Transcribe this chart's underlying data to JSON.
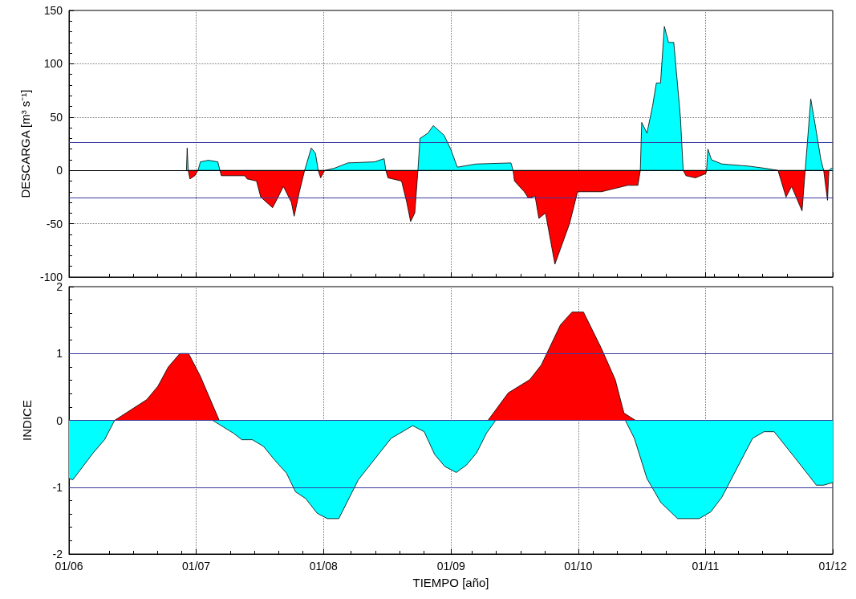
{
  "chart_data": [
    {
      "type": "area",
      "ylabel": "DESCARGA [m³ s⁻¹]",
      "xlim": [
        "2006-01-01",
        "2012-01-01"
      ],
      "ylim": [
        -100,
        150
      ],
      "xticks": [
        {
          "value": "2006-01-01",
          "label": null
        },
        {
          "value": "2007-01-01",
          "label": null
        },
        {
          "value": "2008-01-01",
          "label": null
        },
        {
          "value": "2009-01-01",
          "label": null
        },
        {
          "value": "2010-01-01",
          "label": null
        },
        {
          "value": "2011-01-01",
          "label": null
        },
        {
          "value": "2012-01-01",
          "label": null
        }
      ],
      "yticks": [
        -100,
        -50,
        0,
        50,
        100,
        150
      ],
      "grid": true,
      "tick_labels": "y",
      "ref_lines": [
        {
          "axis": "y",
          "value": 0,
          "color": "#000000"
        },
        {
          "axis": "y",
          "value": 26,
          "color": "#3a3aa0"
        },
        {
          "axis": "y",
          "value": -26,
          "color": "#3a3aa0"
        }
      ],
      "series": [
        {
          "color": "#00ffff",
          "x": [
            "2006-12-04",
            "2006-12-06",
            "2006-12-09",
            "2007-01-06",
            "2007-01-13",
            "2007-02-05",
            "2007-03-04",
            "2007-03-10",
            "2007-11-08",
            "2007-11-27",
            "2007-12-09",
            "2007-12-17",
            "2008-01-05",
            "2008-02-01",
            "2008-03-11",
            "2008-05-27",
            "2008-06-23",
            "2008-06-28",
            "2008-09-28",
            "2008-10-04",
            "2008-10-27",
            "2008-11-11",
            "2008-12-12",
            "2008-12-31",
            "2009-01-19",
            "2009-03-14",
            "2009-06-22",
            "2009-06-28",
            "2010-06-28",
            "2010-07-02",
            "2010-07-17",
            "2010-08-02",
            "2010-08-13",
            "2010-08-25",
            "2010-09-05",
            "2010-09-17",
            "2010-10-02",
            "2010-10-21",
            "2010-10-29",
            "2011-01-04",
            "2011-01-08",
            "2011-01-18",
            "2011-02-17",
            "2011-05-05",
            "2011-06-20",
            "2011-07-28",
            "2011-10-14",
            "2011-10-30",
            "2011-11-13",
            "2011-11-28",
            "2011-12-06",
            "2011-12-21",
            "2011-12-28",
            "2012-01-01"
          ],
          "values": [
            0,
            21,
            0,
            0,
            8,
            9.5,
            8,
            0,
            0,
            21,
            16,
            0,
            0,
            2,
            7,
            8,
            11,
            0,
            0,
            30,
            35,
            42,
            33,
            20,
            3,
            6,
            7,
            0,
            0,
            45,
            35,
            60,
            82,
            82,
            135,
            120,
            120,
            50,
            0,
            0,
            20,
            10,
            6,
            4,
            2,
            0,
            0,
            67,
            40,
            10,
            0,
            0,
            2,
            1
          ]
        },
        {
          "color": "#ff0000",
          "x": [
            "2006-12-09",
            "2006-12-14",
            "2006-12-28",
            "2007-01-06",
            "2007-03-10",
            "2007-03-14",
            "2007-05-20",
            "2007-05-27",
            "2007-06-23",
            "2007-07-05",
            "2007-08-08",
            "2007-08-24",
            "2007-09-08",
            "2007-10-01",
            "2007-10-09",
            "2007-10-24",
            "2007-11-08",
            "2007-12-17",
            "2007-12-24",
            "2008-01-01",
            "2008-01-05",
            "2008-06-28",
            "2008-07-04",
            "2008-08-12",
            "2008-08-27",
            "2008-09-07",
            "2008-09-19",
            "2008-09-28",
            "2009-06-28",
            "2009-07-02",
            "2009-07-30",
            "2009-08-11",
            "2009-08-30",
            "2009-09-10",
            "2009-09-29",
            "2009-10-26",
            "2009-12-07",
            "2009-12-30",
            "2010-03-09",
            "2010-05-23",
            "2010-06-21",
            "2010-06-28",
            "2010-10-29",
            "2010-11-06",
            "2010-12-03",
            "2011-01-02",
            "2011-01-04",
            "2011-07-28",
            "2011-08-20",
            "2011-09-05",
            "2011-10-05",
            "2011-10-14",
            "2011-12-06",
            "2011-12-17",
            "2011-12-21"
          ],
          "values": [
            0,
            -8,
            -5,
            0,
            0,
            -5,
            -5,
            -8,
            -10,
            -25,
            -35,
            -25,
            -15,
            -30,
            -43,
            -20,
            0,
            0,
            -7,
            -2,
            0,
            0,
            -7,
            -10,
            -30,
            -48,
            -40,
            0,
            0,
            -10,
            -20,
            -26,
            -24,
            -45,
            -40,
            -88,
            -50,
            -20,
            -20,
            -14,
            -14,
            0,
            0,
            -5,
            -7,
            -3,
            0,
            0,
            -25,
            -15,
            -38,
            0,
            0,
            -28,
            0
          ]
        }
      ]
    },
    {
      "type": "area",
      "xlabel": "TIEMPO [año]",
      "ylabel": "INDICE",
      "xlim": [
        "2006-01-01",
        "2012-01-01"
      ],
      "ylim": [
        -2,
        2
      ],
      "xticks": [
        {
          "value": "2006-01-01",
          "label": "01/06"
        },
        {
          "value": "2007-01-01",
          "label": "01/07"
        },
        {
          "value": "2008-01-01",
          "label": "01/08"
        },
        {
          "value": "2009-01-01",
          "label": "01/09"
        },
        {
          "value": "2010-01-01",
          "label": "01/10"
        },
        {
          "value": "2011-01-01",
          "label": "01/11"
        },
        {
          "value": "2012-01-01",
          "label": "01/12"
        }
      ],
      "yticks": [
        -2,
        -1,
        0,
        1,
        2
      ],
      "grid": "x",
      "ref_lines": [
        {
          "axis": "y",
          "value": 0,
          "color": "#3a3aa0"
        },
        {
          "axis": "y",
          "value": 1,
          "color": "#3a3aa0"
        },
        {
          "axis": "y",
          "value": -1,
          "color": "#3a3aa0"
        }
      ],
      "series": [
        {
          "color": "#ff0000",
          "x": [
            "2006-05-12",
            "2006-08-12",
            "2006-09-13",
            "2006-10-13",
            "2006-11-15",
            "2006-12-10",
            "2007-01-12",
            "2007-03-08",
            "2009-04-17",
            "2009-06-14",
            "2009-08-15",
            "2009-09-17",
            "2009-11-11",
            "2009-12-14",
            "2010-01-16",
            "2010-03-08",
            "2010-04-17",
            "2010-05-12",
            "2010-06-14"
          ],
          "values": [
            0,
            0.31,
            0.51,
            0.8,
            1.0,
            1.0,
            0.67,
            0,
            0,
            0.41,
            0.61,
            0.83,
            1.43,
            1.62,
            1.62,
            1.08,
            0.61,
            0.11,
            0
          ]
        },
        {
          "color": "#00ffff",
          "x": [
            "2006-01-01",
            "2006-01-12",
            "2006-03-11",
            "2006-04-13",
            "2006-05-12",
            "2007-02-17",
            "2007-04-17",
            "2007-05-12",
            "2007-06-11",
            "2007-07-13",
            "2007-08-15",
            "2007-09-17",
            "2007-10-13",
            "2007-11-11",
            "2007-12-14",
            "2008-01-12",
            "2008-02-14",
            "2008-04-10",
            "2008-07-13",
            "2008-09-13",
            "2008-10-16",
            "2008-11-15",
            "2008-12-14",
            "2009-01-16",
            "2009-02-14",
            "2009-03-15",
            "2009-04-13",
            "2009-05-09",
            "2010-05-16",
            "2010-06-11",
            "2010-07-17",
            "2010-08-26",
            "2010-10-13",
            "2010-12-14",
            "2011-01-16",
            "2011-02-17",
            "2011-04-06",
            "2011-05-16",
            "2011-06-18",
            "2011-07-17",
            "2011-09-13",
            "2011-11-15",
            "2011-12-06",
            "2012-01-01"
          ],
          "values": [
            -0.87,
            -0.89,
            -0.49,
            -0.29,
            0,
            0,
            -0.19,
            -0.29,
            -0.29,
            -0.39,
            -0.6,
            -0.79,
            -1.07,
            -1.17,
            -1.39,
            -1.47,
            -1.47,
            -0.89,
            -0.27,
            -0.08,
            -0.17,
            -0.51,
            -0.69,
            -0.78,
            -0.67,
            -0.49,
            -0.19,
            0,
            0,
            -0.27,
            -0.87,
            -1.23,
            -1.47,
            -1.47,
            -1.37,
            -1.15,
            -0.67,
            -0.27,
            -0.17,
            -0.17,
            -0.55,
            -0.97,
            -0.97,
            -0.93
          ]
        }
      ]
    }
  ]
}
